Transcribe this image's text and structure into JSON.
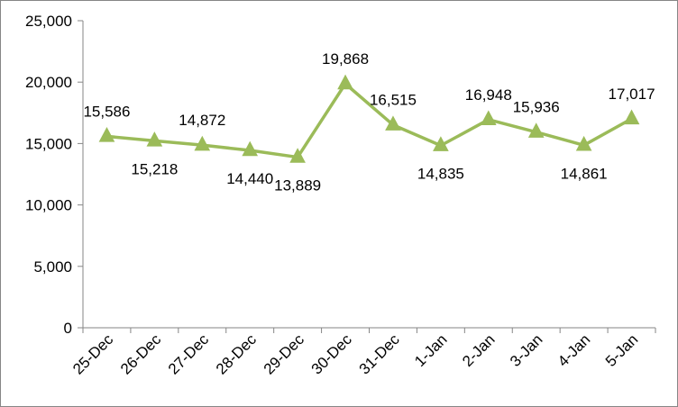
{
  "chart_data": {
    "type": "line",
    "title": "",
    "xlabel": "",
    "ylabel": "",
    "categories": [
      "25-Dec",
      "26-Dec",
      "27-Dec",
      "28-Dec",
      "29-Dec",
      "30-Dec",
      "31-Dec",
      "1-Jan",
      "2-Jan",
      "3-Jan",
      "4-Jan",
      "5-Jan"
    ],
    "series": [
      {
        "values": [
          15586,
          15218,
          14872,
          14440,
          13889,
          19868,
          16515,
          14835,
          16948,
          15936,
          14861,
          17017
        ],
        "labels": [
          "15,586",
          "15,218",
          "14,872",
          "14,440",
          "13,889",
          "19,868",
          "16,515",
          "14,835",
          "16,948",
          "15,936",
          "14,861",
          "17,017"
        ],
        "label_positions": [
          "above",
          "below",
          "above",
          "below",
          "below",
          "above",
          "above",
          "below",
          "above",
          "above",
          "below",
          "above"
        ],
        "color": "#9BBB59",
        "marker": "triangle"
      }
    ],
    "y_ticks": [
      "0",
      "5,000",
      "10,000",
      "15,000",
      "20,000",
      "25,000"
    ],
    "y_tick_values": [
      0,
      5000,
      10000,
      15000,
      20000,
      25000
    ],
    "ylim": [
      0,
      25000
    ],
    "grid": false,
    "legend": "none",
    "axis_color": "#868686"
  }
}
